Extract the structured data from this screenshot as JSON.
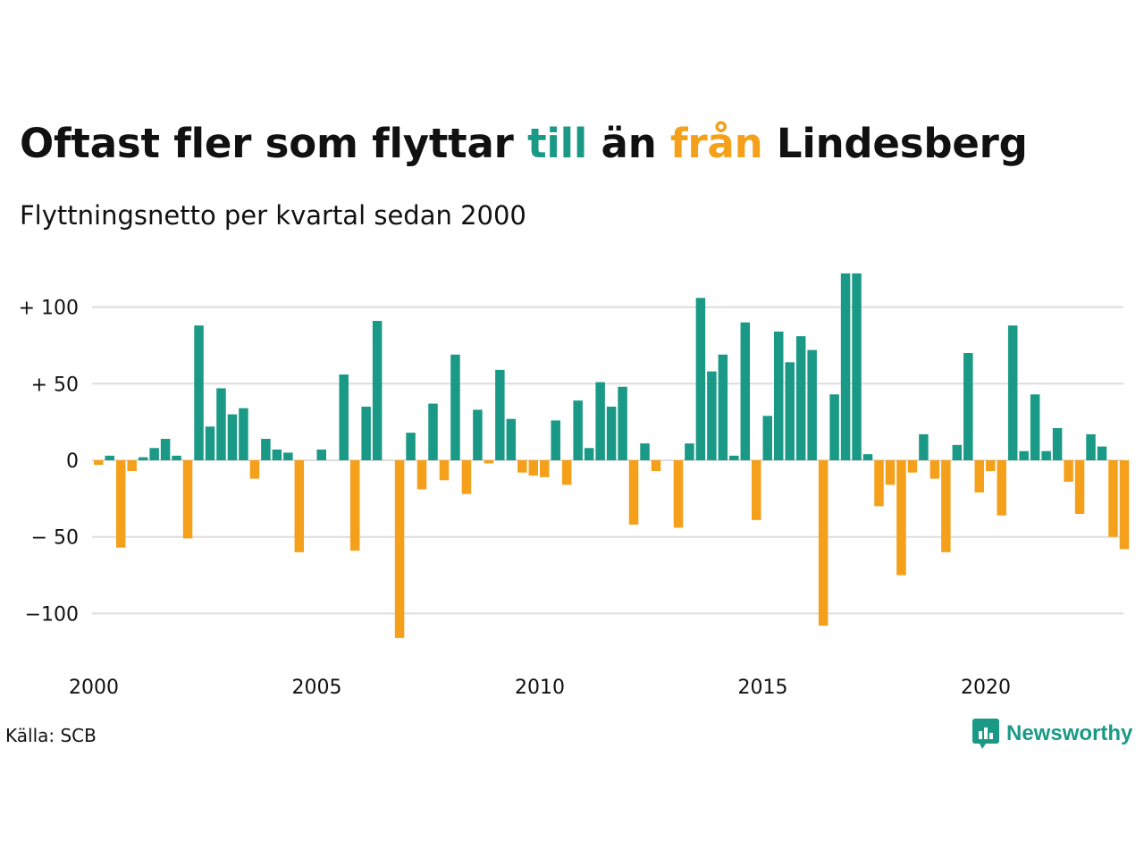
{
  "title": {
    "part1": "Oftast fler som flyttar ",
    "till": "till",
    "part2": " än ",
    "fran": "från",
    "part3": " Lindesberg"
  },
  "subtitle": "Flyttningsnetto per kvartal sedan 2000",
  "source": "Källa: SCB",
  "brand": "Newsworthy",
  "colors": {
    "positive": "#1a9a86",
    "negative": "#f5a01a",
    "grid": "#dddddd",
    "text": "#111111"
  },
  "chart_data": {
    "type": "bar",
    "start_year": 2000,
    "y_ticks": [
      {
        "value": 100,
        "label": "+ 100"
      },
      {
        "value": 50,
        "label": "+  50"
      },
      {
        "value": 0,
        "label": "0"
      },
      {
        "value": -50,
        "label": "− 50"
      },
      {
        "value": -100,
        "label": "−100"
      }
    ],
    "x_ticks": [
      "2000",
      "2005",
      "2010",
      "2015",
      "2020"
    ],
    "ylim": [
      -120,
      125
    ],
    "grid": true,
    "values": [
      -3,
      3,
      -57,
      -7,
      2,
      8,
      14,
      3,
      -51,
      88,
      22,
      47,
      30,
      34,
      -12,
      14,
      7,
      5,
      -60,
      0,
      7,
      0,
      56,
      -59,
      35,
      91,
      0,
      -116,
      18,
      -19,
      37,
      -13,
      69,
      -22,
      33,
      -2,
      59,
      27,
      -8,
      -10,
      -11,
      26,
      -16,
      39,
      8,
      51,
      35,
      48,
      -42,
      11,
      -7,
      0,
      -44,
      11,
      106,
      58,
      69,
      3,
      90,
      -39,
      29,
      84,
      64,
      81,
      72,
      -108,
      43,
      122,
      122,
      4,
      -30,
      -16,
      -75,
      -8,
      17,
      -12,
      -60,
      10,
      70,
      -21,
      -7,
      -36,
      88,
      6,
      43,
      6,
      21,
      -14,
      -35,
      17,
      9,
      -50,
      -58
    ]
  }
}
